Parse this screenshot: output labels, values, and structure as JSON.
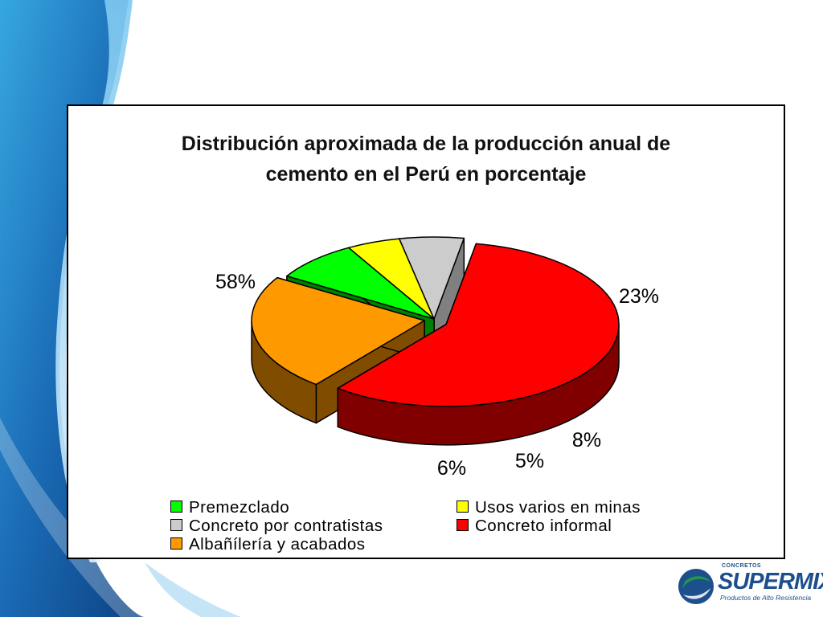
{
  "chart_data": {
    "type": "pie",
    "title_lines": [
      "Distribución aproximada de la producción anual de",
      "cemento en el Perú en porcentaje"
    ],
    "slices": [
      {
        "name": "Concreto informal",
        "value": 58,
        "label": "58%",
        "color": "#ff0000",
        "side_color": "#800000"
      },
      {
        "name": "Albañílería y acabados",
        "value": 23,
        "label": "23%",
        "color": "#ff9900",
        "side_color": "#804c00"
      },
      {
        "name": "Premezclado",
        "value": 8,
        "label": "8%",
        "color": "#00ff00",
        "side_color": "#008000"
      },
      {
        "name": "Usos varios en minas",
        "value": 5,
        "label": "5%",
        "color": "#ffff00",
        "side_color": "#808000"
      },
      {
        "name": "Concreto por contratistas",
        "value": 6,
        "label": "6%",
        "color": "#cccccc",
        "side_color": "#808080"
      }
    ],
    "legend": [
      {
        "label": "Premezclado",
        "color": "#00ff00"
      },
      {
        "label": "Usos varios en minas",
        "color": "#ffff00"
      },
      {
        "label": "Concreto por contratistas",
        "color": "#cccccc"
      },
      {
        "label": "Concreto informal",
        "color": "#ff0000"
      },
      {
        "label": "Albañílería y acabados",
        "color": "#ff9900"
      }
    ],
    "legend_placement": "bottom",
    "exploded": true,
    "style": "3d"
  },
  "logo": {
    "small_text": "CONCRETOS",
    "brand": "SUPERMIX",
    "tagline": "Productos de Alto Resistencia"
  },
  "colors": {
    "background_blue": "#1a6bb5",
    "brand_blue": "#1d4f8c",
    "brand_green": "#1f9a4a"
  }
}
